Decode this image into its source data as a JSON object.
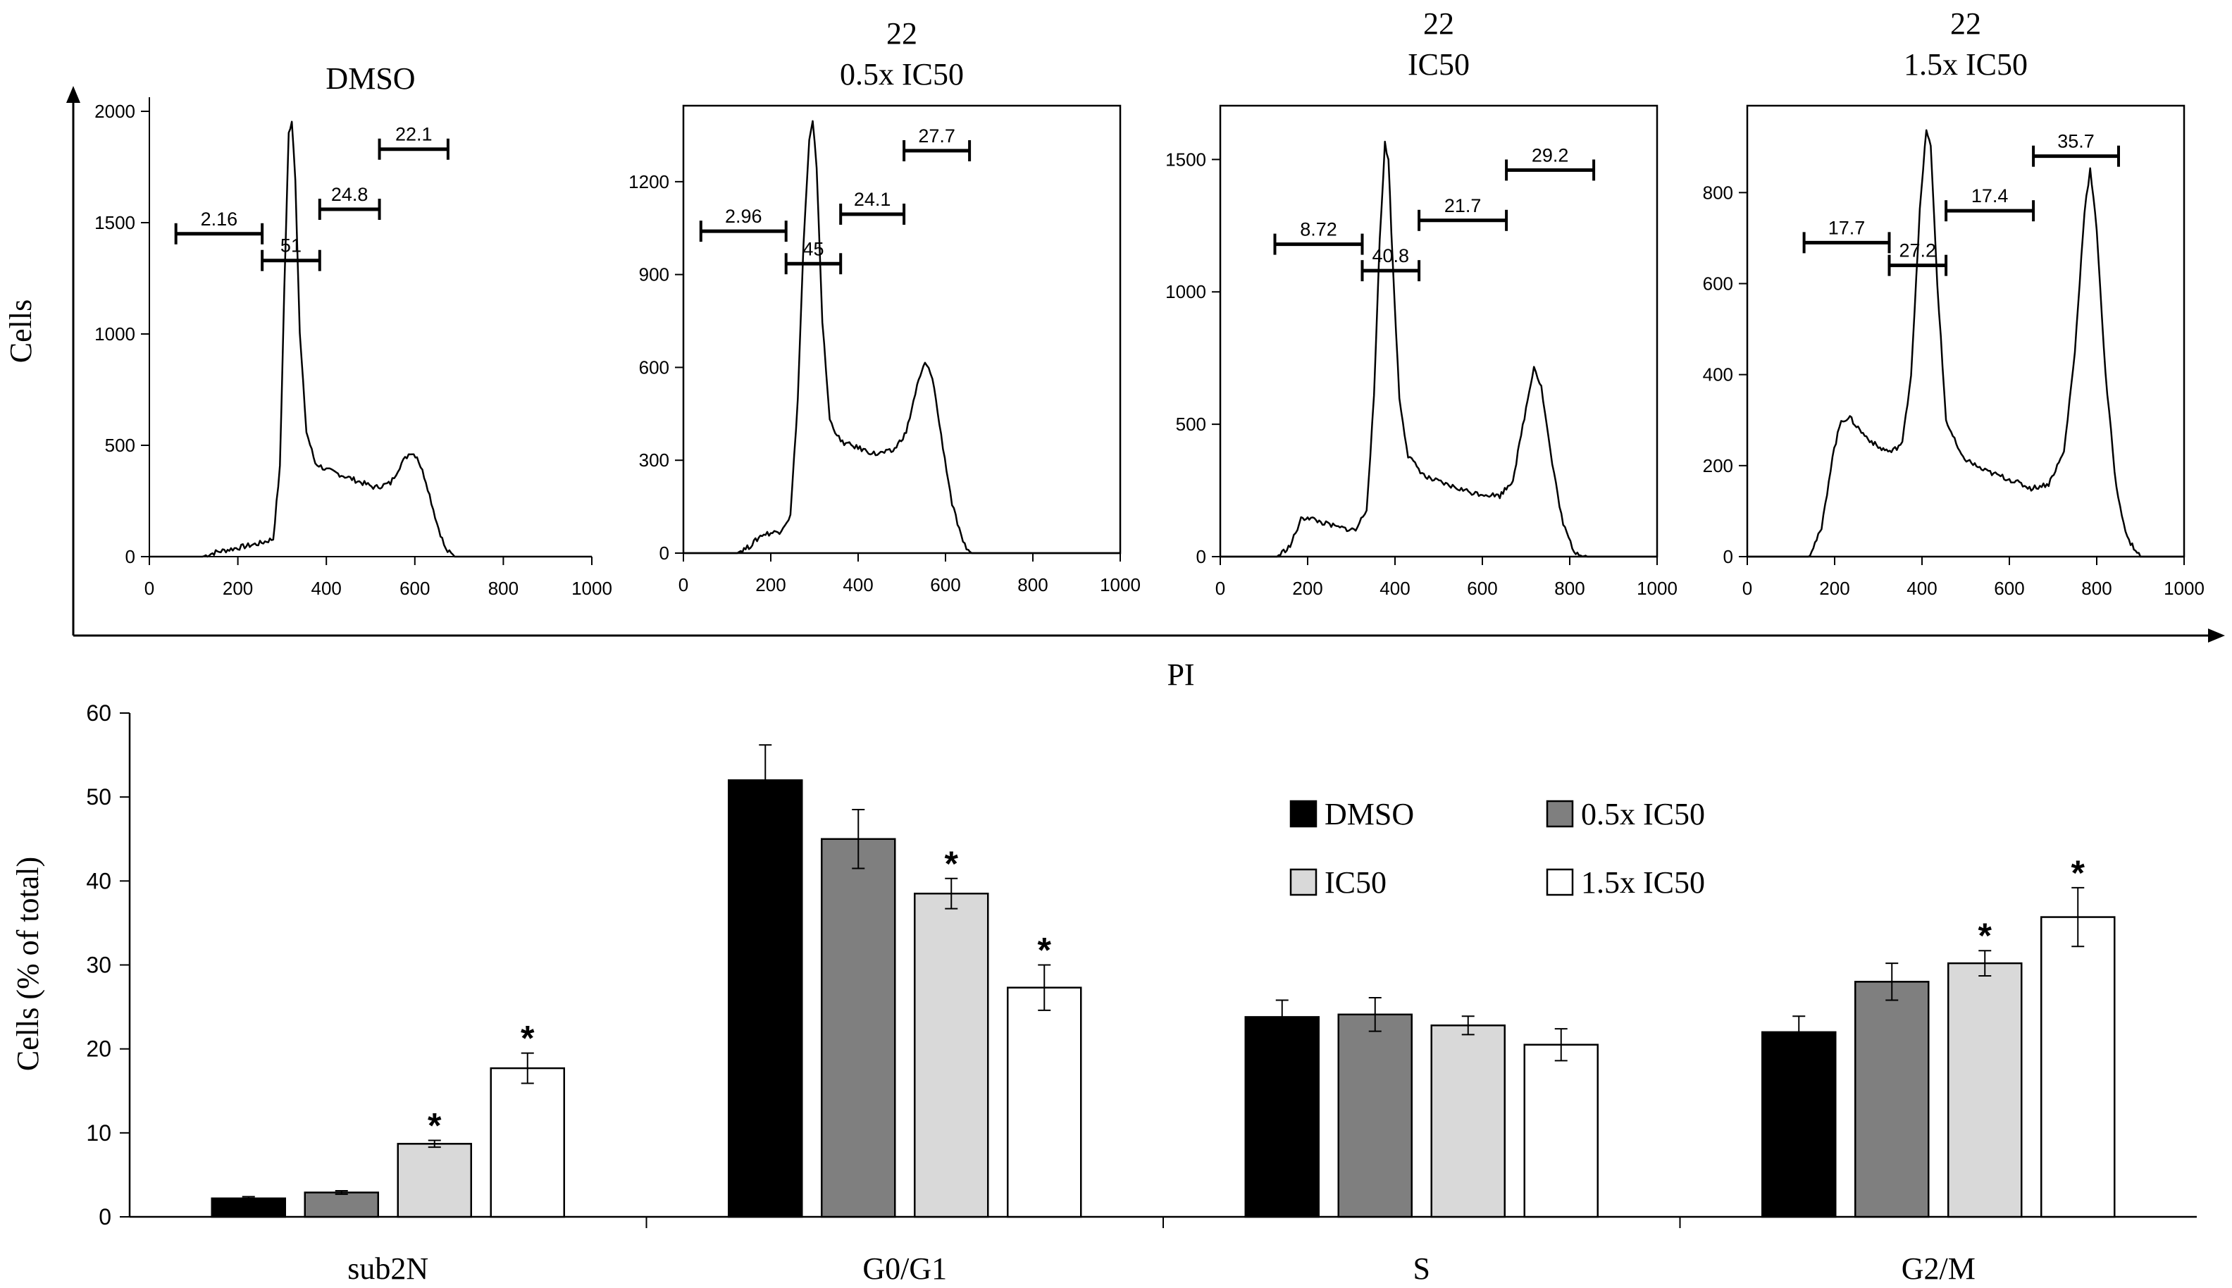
{
  "figure": {
    "ylabel_top": "Cells",
    "xlabel_top": "PI",
    "ylabel_bottom": "Cells (% of total)"
  },
  "histograms": [
    {
      "title_line1": "",
      "title_line2": "DMSO",
      "x_ticks": [
        0,
        200,
        400,
        600,
        800,
        1000
      ],
      "y_ticks": [
        0,
        500,
        1000,
        1500,
        2000
      ],
      "xlim": [
        0,
        1000
      ],
      "ylim": [
        0,
        2000
      ],
      "gates": [
        {
          "label": "2.16",
          "from": 60,
          "to": 255,
          "level": 1450
        },
        {
          "label": "51",
          "from": 255,
          "to": 385,
          "level": 1330
        },
        {
          "label": "24.8",
          "from": 385,
          "to": 520,
          "level": 1560
        },
        {
          "label": "22.1",
          "from": 520,
          "to": 675,
          "level": 1830
        }
      ],
      "profile": [
        [
          0,
          0
        ],
        [
          120,
          0
        ],
        [
          150,
          20
        ],
        [
          200,
          40
        ],
        [
          250,
          60
        ],
        [
          280,
          80
        ],
        [
          295,
          400
        ],
        [
          305,
          1200
        ],
        [
          315,
          1900
        ],
        [
          322,
          1960
        ],
        [
          330,
          1700
        ],
        [
          340,
          1000
        ],
        [
          355,
          560
        ],
        [
          375,
          420
        ],
        [
          400,
          390
        ],
        [
          430,
          370
        ],
        [
          470,
          340
        ],
        [
          510,
          310
        ],
        [
          545,
          330
        ],
        [
          570,
          420
        ],
        [
          590,
          470
        ],
        [
          605,
          450
        ],
        [
          625,
          340
        ],
        [
          650,
          150
        ],
        [
          670,
          30
        ],
        [
          690,
          0
        ],
        [
          1000,
          0
        ]
      ]
    },
    {
      "title_line1": "22",
      "title_line2": "0.5x IC50",
      "x_ticks": [
        0,
        200,
        400,
        600,
        800,
        1000
      ],
      "y_ticks": [
        0,
        300,
        600,
        900,
        1200
      ],
      "xlim": [
        0,
        1000
      ],
      "ylim": [
        0,
        1400
      ],
      "gates": [
        {
          "label": "2.96",
          "from": 40,
          "to": 235,
          "level": 1040
        },
        {
          "label": "45",
          "from": 235,
          "to": 360,
          "level": 935
        },
        {
          "label": "24.1",
          "from": 360,
          "to": 505,
          "level": 1095
        },
        {
          "label": "27.7",
          "from": 505,
          "to": 655,
          "level": 1300
        }
      ],
      "profile": [
        [
          0,
          0
        ],
        [
          120,
          0
        ],
        [
          150,
          20
        ],
        [
          180,
          60
        ],
        [
          220,
          70
        ],
        [
          245,
          120
        ],
        [
          262,
          500
        ],
        [
          275,
          1000
        ],
        [
          288,
          1330
        ],
        [
          296,
          1390
        ],
        [
          305,
          1250
        ],
        [
          318,
          750
        ],
        [
          335,
          430
        ],
        [
          360,
          360
        ],
        [
          400,
          340
        ],
        [
          440,
          320
        ],
        [
          480,
          330
        ],
        [
          510,
          390
        ],
        [
          535,
          540
        ],
        [
          553,
          615
        ],
        [
          570,
          570
        ],
        [
          590,
          380
        ],
        [
          615,
          160
        ],
        [
          640,
          30
        ],
        [
          660,
          0
        ],
        [
          1000,
          0
        ]
      ]
    },
    {
      "title_line1": "22",
      "title_line2": "IC50",
      "x_ticks": [
        0,
        200,
        400,
        600,
        800,
        1000
      ],
      "y_ticks": [
        0,
        500,
        1000,
        1500
      ],
      "xlim": [
        0,
        1000
      ],
      "ylim": [
        0,
        1650
      ],
      "gates": [
        {
          "label": "8.72",
          "from": 125,
          "to": 325,
          "level": 1180
        },
        {
          "label": "40.8",
          "from": 325,
          "to": 455,
          "level": 1080
        },
        {
          "label": "21.7",
          "from": 455,
          "to": 655,
          "level": 1270
        },
        {
          "label": "29.2",
          "from": 655,
          "to": 855,
          "level": 1460
        }
      ],
      "profile": [
        [
          0,
          0
        ],
        [
          130,
          0
        ],
        [
          160,
          40
        ],
        [
          185,
          140
        ],
        [
          200,
          150
        ],
        [
          230,
          130
        ],
        [
          270,
          110
        ],
        [
          310,
          100
        ],
        [
          335,
          180
        ],
        [
          352,
          600
        ],
        [
          365,
          1200
        ],
        [
          377,
          1560
        ],
        [
          385,
          1500
        ],
        [
          395,
          1100
        ],
        [
          410,
          600
        ],
        [
          430,
          380
        ],
        [
          470,
          300
        ],
        [
          520,
          270
        ],
        [
          580,
          240
        ],
        [
          640,
          230
        ],
        [
          670,
          290
        ],
        [
          700,
          560
        ],
        [
          718,
          720
        ],
        [
          735,
          640
        ],
        [
          760,
          350
        ],
        [
          785,
          120
        ],
        [
          810,
          20
        ],
        [
          840,
          0
        ],
        [
          1000,
          0
        ]
      ]
    },
    {
      "title_line1": "22",
      "title_line2": "1.5x IC50",
      "x_ticks": [
        0,
        200,
        400,
        600,
        800,
        1000
      ],
      "y_ticks": [
        0,
        200,
        400,
        600,
        800
      ],
      "xlim": [
        0,
        1000
      ],
      "ylim": [
        0,
        960
      ],
      "gates": [
        {
          "label": "17.7",
          "from": 130,
          "to": 325,
          "level": 690
        },
        {
          "label": "27.2",
          "from": 325,
          "to": 455,
          "level": 640
        },
        {
          "label": "17.4",
          "from": 455,
          "to": 655,
          "level": 760
        },
        {
          "label": "35.7",
          "from": 655,
          "to": 850,
          "level": 880
        }
      ],
      "profile": [
        [
          0,
          0
        ],
        [
          140,
          0
        ],
        [
          170,
          60
        ],
        [
          195,
          220
        ],
        [
          215,
          300
        ],
        [
          235,
          305
        ],
        [
          265,
          270
        ],
        [
          300,
          240
        ],
        [
          330,
          230
        ],
        [
          355,
          250
        ],
        [
          375,
          400
        ],
        [
          395,
          760
        ],
        [
          410,
          940
        ],
        [
          420,
          900
        ],
        [
          435,
          600
        ],
        [
          455,
          300
        ],
        [
          490,
          220
        ],
        [
          540,
          190
        ],
        [
          600,
          170
        ],
        [
          650,
          150
        ],
        [
          690,
          160
        ],
        [
          725,
          230
        ],
        [
          750,
          450
        ],
        [
          772,
          760
        ],
        [
          785,
          850
        ],
        [
          800,
          720
        ],
        [
          820,
          400
        ],
        [
          845,
          150
        ],
        [
          870,
          40
        ],
        [
          900,
          0
        ],
        [
          1000,
          0
        ]
      ]
    }
  ],
  "chart_data": {
    "type": "bar",
    "categories": [
      "sub2N",
      "G0/G1",
      "S",
      "G2/M"
    ],
    "series": [
      {
        "name": "DMSO",
        "color": "#000000",
        "values": [
          2.2,
          52.0,
          23.8,
          22.0
        ],
        "errors": [
          0.2,
          4.2,
          2.0,
          1.9
        ],
        "significant": [
          false,
          false,
          false,
          false
        ]
      },
      {
        "name": "0.5x IC50",
        "color": "#7f7f7f",
        "values": [
          2.9,
          45.0,
          24.1,
          28.0
        ],
        "errors": [
          0.2,
          3.5,
          2.0,
          2.2
        ],
        "significant": [
          false,
          false,
          false,
          false
        ]
      },
      {
        "name": "IC50",
        "color": "#d9d9d9",
        "values": [
          8.7,
          38.5,
          22.8,
          30.2
        ],
        "errors": [
          0.4,
          1.8,
          1.1,
          1.5
        ],
        "significant": [
          true,
          true,
          false,
          true
        ]
      },
      {
        "name": "1.5x IC50",
        "color": "#ffffff",
        "values": [
          17.7,
          27.3,
          20.5,
          35.7
        ],
        "errors": [
          1.8,
          2.7,
          1.9,
          3.5
        ],
        "significant": [
          true,
          true,
          false,
          true
        ]
      }
    ],
    "ylabel": "Cells (% of total)",
    "xlabel": "",
    "ylim": [
      0,
      60
    ],
    "y_ticks": [
      0,
      10,
      20,
      30,
      40,
      50,
      60
    ],
    "significance_marker": "*",
    "legend_position": "top-right",
    "grid": false
  }
}
